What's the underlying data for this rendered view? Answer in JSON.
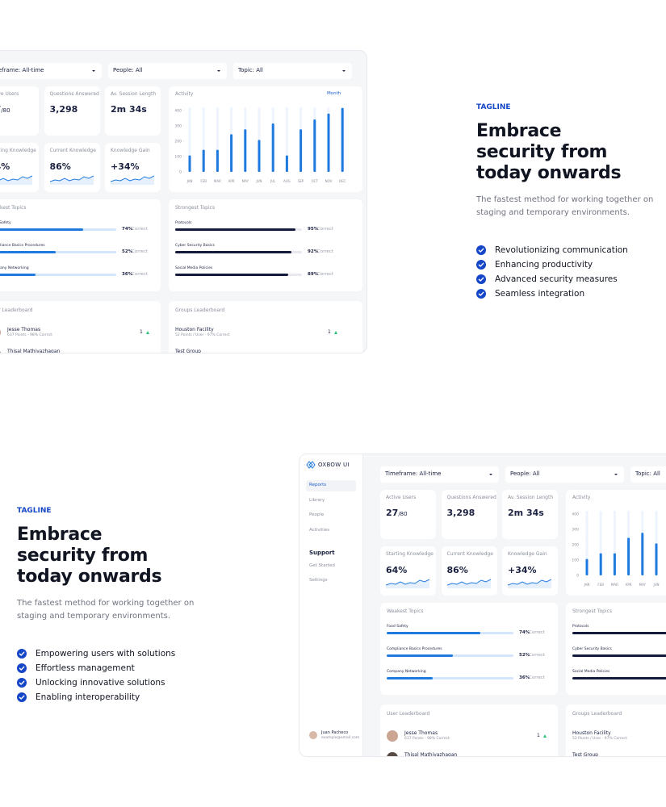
{
  "dashboard": {
    "brand": "OXBOW UI",
    "nav": [
      "Reports",
      "Library",
      "People",
      "Activities"
    ],
    "support_heading": "Support",
    "support_nav": [
      "Get Started",
      "Settings"
    ],
    "user": {
      "name": "Juan Pacheco",
      "email": "example@email.com"
    },
    "filters": [
      "Timeframe: All-time",
      "People: All",
      "Topic: All"
    ],
    "stats": [
      {
        "label": "Active Users",
        "value": "27",
        "suffix": "/80"
      },
      {
        "label": "Questions Answered",
        "value": "3,298"
      },
      {
        "label": "Av. Session Length",
        "value": "2m 34s"
      },
      {
        "label": "Starting Knowledge",
        "value": "64%"
      },
      {
        "label": "Current Knowledge",
        "value": "86%"
      },
      {
        "label": "Knowledge Gain",
        "value": "+34%"
      }
    ],
    "correct_label": "Correct",
    "weakest_topics": {
      "title": "Weakest Topics",
      "items": [
        {
          "name": "Food Safety",
          "value": 74,
          "label": "74%"
        },
        {
          "name": "Compliance Basics Procedures",
          "value": 52,
          "label": "52%"
        },
        {
          "name": "Company Networking",
          "value": 36,
          "label": "36%"
        }
      ]
    },
    "strongest_topics": {
      "title": "Strongest Topics",
      "items": [
        {
          "name": "Protocols",
          "value": 95,
          "label": "95%"
        },
        {
          "name": "Cyber Security Basics",
          "value": 92,
          "label": "92%"
        },
        {
          "name": "Social Media Policies",
          "value": 89,
          "label": "89%"
        }
      ]
    },
    "user_leaderboard": {
      "title": "User Leaderboard",
      "rows": [
        {
          "name": "Jesse Thomas",
          "detail": "637 Points - 98% Correct",
          "rank": "1"
        },
        {
          "name": "Thisal Mathiyazhagan"
        }
      ]
    },
    "groups_leaderboard": {
      "title": "Groups Leaderboard",
      "rows": [
        {
          "name": "Houston Facility",
          "detail": "52 Points / User - 97% Correct",
          "rank": "1"
        },
        {
          "name": "Test Group"
        }
      ]
    }
  },
  "chart_data": {
    "type": "bar",
    "title": "Activity",
    "period": "Month",
    "color": "#1f7ae0",
    "categories": [
      "JAN",
      "FEB",
      "MAR",
      "APR",
      "MAY",
      "JUN",
      "JUL",
      "AUG",
      "SEP",
      "OCT",
      "NOV",
      "DEC"
    ],
    "values": [
      107,
      144,
      144,
      245,
      277,
      208,
      315,
      107,
      277,
      341,
      379,
      416
    ],
    "ylim": [
      0,
      420
    ],
    "yticks": [
      0,
      100,
      200,
      300,
      400
    ]
  },
  "sections": [
    {
      "tagline": "TAGLINE",
      "heading": [
        "Embrace",
        "security from",
        "today onwards"
      ],
      "description": [
        "The fastest method for working together on",
        "staging and temporary environments."
      ],
      "features": [
        "Revolutionizing communication",
        "Enhancing productivity",
        "Advanced security measures",
        "Seamless integration"
      ]
    },
    {
      "tagline": "TAGLINE",
      "heading": [
        "Embrace",
        "security from",
        "today onwards"
      ],
      "description": [
        "The fastest method for working together on",
        "staging and temporary environments."
      ],
      "features": [
        "Empowering users with solutions",
        "Effortless management",
        "Unlocking innovative solutions",
        "Enabling interoperability"
      ]
    }
  ]
}
